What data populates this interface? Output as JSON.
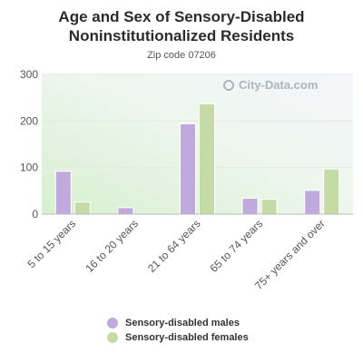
{
  "chart_data": {
    "type": "bar",
    "title": "Age and Sex of Sensory-Disabled Noninstitutionalized Residents",
    "subtitle": "Zip code 07206",
    "categories": [
      "5 to 15 years",
      "16 to 20 years",
      "21 to 64 years",
      "65 to 74 years",
      "75+ years and over"
    ],
    "series": [
      {
        "name": "Sensory-disabled males",
        "color": "#c0a9dc",
        "values": [
          92,
          14,
          194,
          34,
          51
        ]
      },
      {
        "name": "Sensory-disabled females",
        "color": "#c5dba6",
        "values": [
          26,
          0,
          237,
          32,
          97
        ]
      }
    ],
    "y_ticks": [
      "0",
      "100",
      "200",
      "300"
    ],
    "ylim": [
      0,
      300
    ],
    "grid": true,
    "legend_position": "bottom"
  },
  "watermark": "City-Data.com"
}
